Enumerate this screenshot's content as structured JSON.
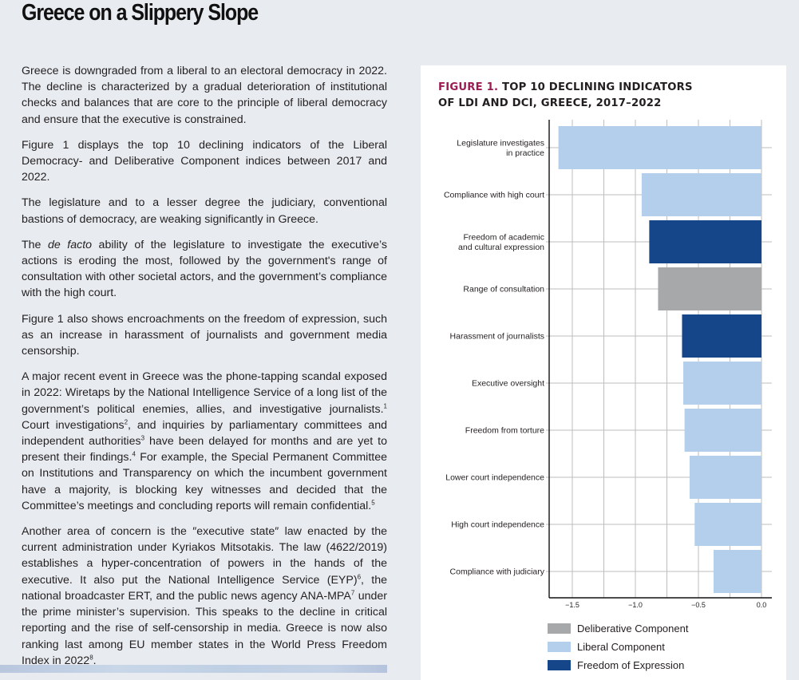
{
  "page": {
    "title": "Greece on a Slippery Slope",
    "paragraphs": [
      {
        "text": "Greece is downgraded from a liberal to an electoral democracy in 2022. The decline is characterized by a gradual deterioration of institutional checks and balances that are core to the principle of liberal democracy and ensure that the executive is constrained."
      },
      {
        "text": "Figure 1 displays the top 10 declining indicators of the Liberal Democracy- and Deliberative Component indices between 2017 and 2022."
      },
      {
        "text": "The legislature and to a lesser degree the judiciary, conventional bastions of democracy, are weaking significantly in Greece."
      },
      {
        "pre": "The ",
        "italic": "de facto",
        "post": " ability of the legislature to investigate the executive’s actions is eroding the most, followed by the government's range of consultation with other societal actors, and the government’s compliance with the high court."
      },
      {
        "text": "Figure 1 also shows encroachments on the freedom of expression, such as an increase in harassment of journalists and government media censorship."
      },
      {
        "segments": [
          {
            "t": "A major recent event in Greece was the phone-tapping scandal exposed in 2022: Wiretaps by the National Intelligence Service of a long list of the government’s political enemies, allies, and investigative journalists."
          },
          {
            "sup": "1"
          },
          {
            "t": " Court investigations"
          },
          {
            "sup": "2"
          },
          {
            "t": ", and inquiries by parliamentary committees and independent authorities"
          },
          {
            "sup": "3"
          },
          {
            "t": " have been delayed for months and are yet to present their findings."
          },
          {
            "sup": "4"
          },
          {
            "t": " For example, the Special Permanent Committee on Institutions and Transparency on which the incumbent government have a majority, is blocking key witnesses and decided that the Committee’s meetings and concluding reports will remain confidential."
          },
          {
            "sup": "5"
          }
        ]
      },
      {
        "segments": [
          {
            "t": "Another area of concern is the ″executive state″ law enacted by the current administration under Kyriakos Mitsotakis. The law (4622/2019) establishes a hyper-concentration of powers in the hands of the executive. It also put the National Intelligence Service (EYP)"
          },
          {
            "sup": "6"
          },
          {
            "t": ", the national broadcaster ERT, and the public news agency ANA-MPA"
          },
          {
            "sup": "7"
          },
          {
            "t": " under the prime minister’s supervision. This speaks to the decline in critical reporting and the rise of self-censorship in media. Greece is now also ranking last among EU member states in the World Press Freedom Index in 2022"
          },
          {
            "sup": "8"
          },
          {
            "t": "."
          }
        ]
      }
    ]
  },
  "figure": {
    "number_label": "FIGURE 1.",
    "title_line1": " TOP 10 DECLINING INDICATORS",
    "title_line2": "OF LDI AND DCI, GREECE, 2017–2022"
  },
  "colors": {
    "deliberative": "#a6a8a9",
    "liberal": "#b3cfec",
    "expression": "#15468a",
    "figure_accent": "#9b1b52"
  },
  "chart_data": {
    "type": "bar",
    "orientation": "horizontal",
    "title": "FIGURE 1. TOP 10 DECLINING INDICATORS OF LDI AND DCI, GREECE, 2017–2022",
    "xlabel": "",
    "ylabel": "",
    "xlim": [
      -1.69,
      0.0
    ],
    "xticks": [
      -1.5,
      -1.0,
      -0.5,
      0.0
    ],
    "xtick_labels": [
      "−1.5",
      "−1.0",
      "−0.5",
      "0.0"
    ],
    "grid": true,
    "legend_position": "bottom",
    "categories": [
      "Legislature investigates in practice",
      "Compliance with high court",
      "Freedom of academic and cultural expression",
      "Range of consultation",
      "Harassment of journalists",
      "Executive oversight",
      "Freedom from torture",
      "Lower court independence",
      "High court independence",
      "Compliance with judiciary"
    ],
    "category_label_lines": [
      [
        "Legislature investigates",
        "in practice"
      ],
      [
        "Compliance with high court"
      ],
      [
        "Freedom of academic",
        "and cultural expression"
      ],
      [
        "Range of consultation"
      ],
      [
        "Harassment of journalists"
      ],
      [
        "Executive oversight"
      ],
      [
        "Freedom from torture"
      ],
      [
        "Lower court independence"
      ],
      [
        "High court independence"
      ],
      [
        "Compliance with judiciary"
      ]
    ],
    "values": [
      -1.61,
      -0.95,
      -0.89,
      -0.82,
      -0.63,
      -0.62,
      -0.61,
      -0.57,
      -0.53,
      -0.38
    ],
    "groups": [
      "liberal",
      "liberal",
      "expression",
      "deliberative",
      "expression",
      "liberal",
      "liberal",
      "liberal",
      "liberal",
      "liberal"
    ],
    "legend": [
      {
        "key": "deliberative",
        "label": "Deliberative Component"
      },
      {
        "key": "liberal",
        "label": "Liberal Component"
      },
      {
        "key": "expression",
        "label": "Freedom of Expression"
      }
    ]
  }
}
